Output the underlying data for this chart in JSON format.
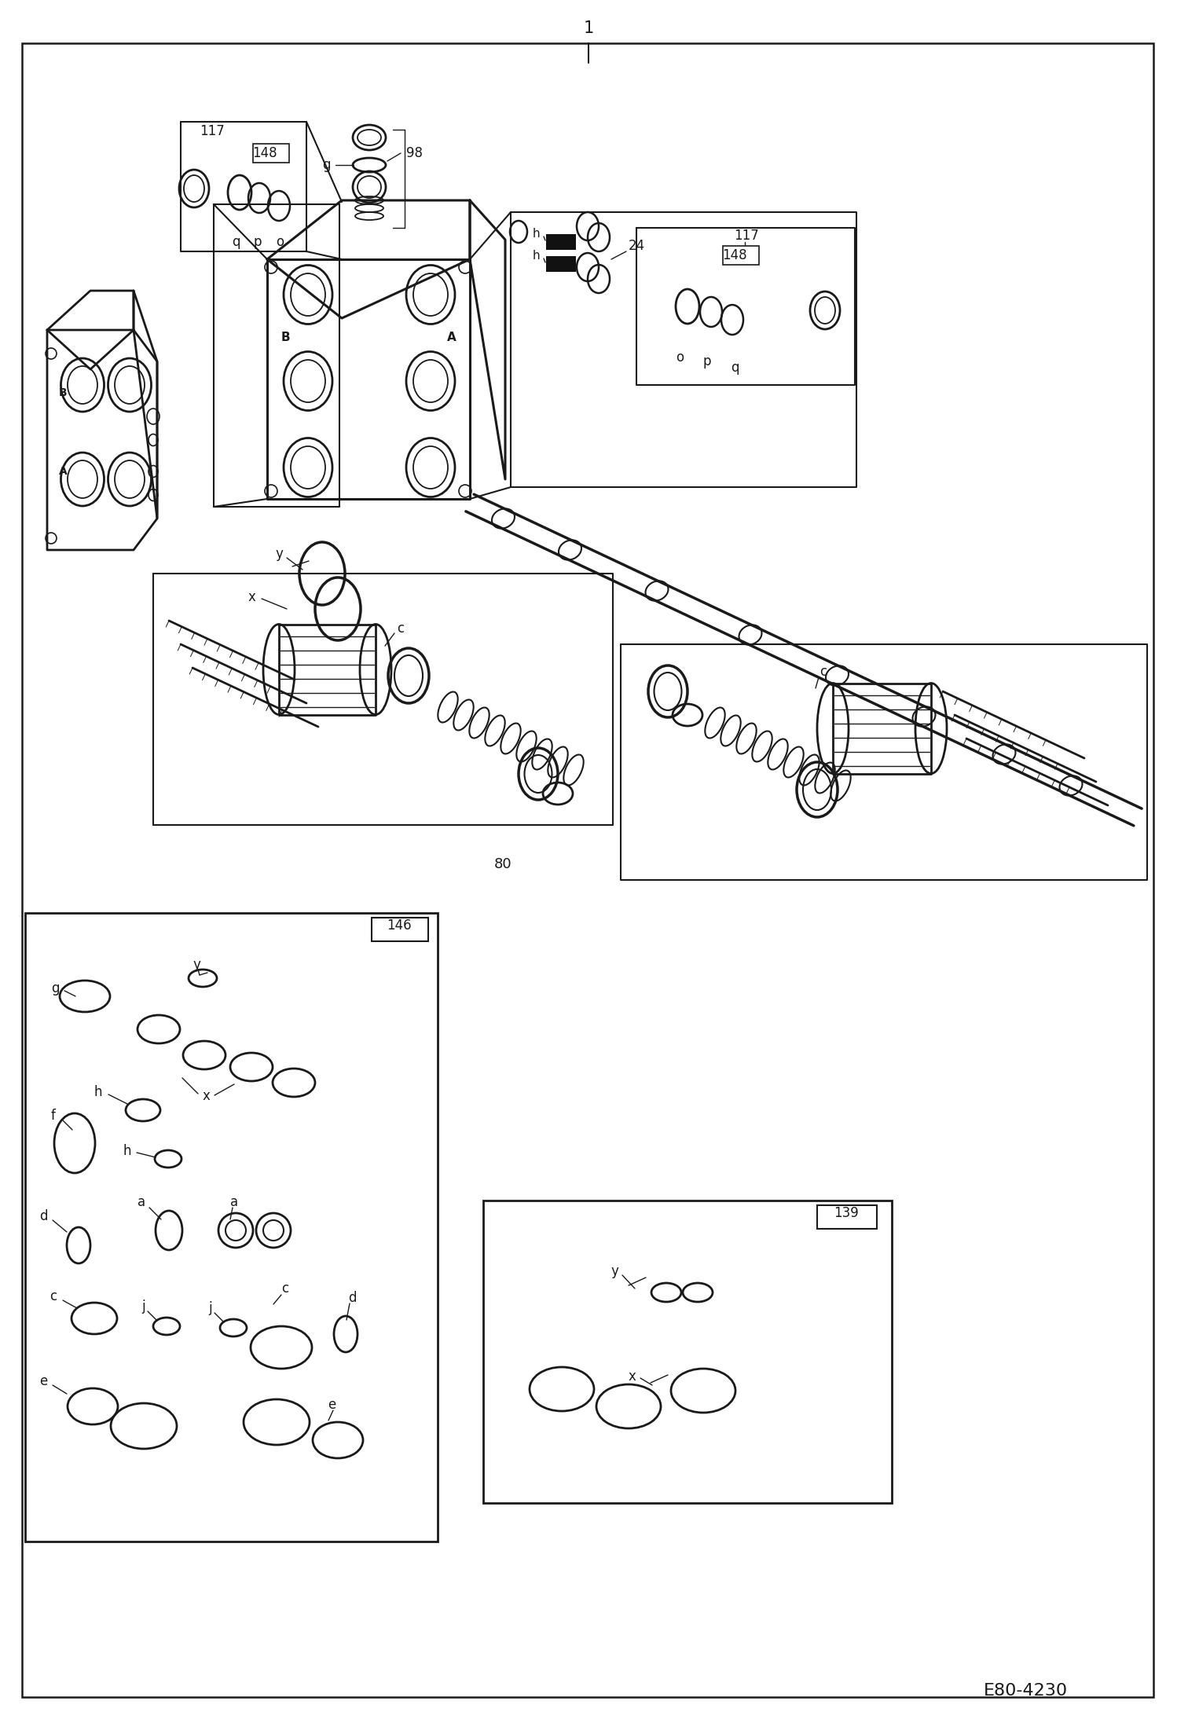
{
  "bg_color": "#ffffff",
  "lc": "#1a1a1a",
  "fig_width": 14.98,
  "fig_height": 21.93,
  "dpi": 100,
  "footer": "E80-4230",
  "border_num": "1",
  "labels": {
    "117_left": "117",
    "148_left": "148",
    "g": "g",
    "98": "98",
    "h1": "h",
    "h2": "h",
    "24": "24",
    "117_right": "117",
    "148_right": "148",
    "A_main": "A",
    "B_main": "B",
    "o_left": "o",
    "p_left": "p",
    "q_left": "q",
    "o_right": "o",
    "p_right": "p",
    "q_right": "q",
    "y_main": "y",
    "x_main": "x",
    "c_left": "c",
    "c_right": "c",
    "80": "80",
    "146_inset": "146",
    "139_inset": "139",
    "g_inset": "g",
    "y_inset146": "y",
    "x_inset146": "x",
    "h_inset1": "h",
    "f_inset": "f",
    "h_inset2": "h",
    "d_inset_l": "d",
    "a_inset_l": "a",
    "a_inset_r": "a",
    "c_inset_l": "c",
    "c_inset_r": "c",
    "j_inset1": "j",
    "j_inset2": "j",
    "d_inset_r": "d",
    "e_inset_l": "e",
    "e_inset_r": "e",
    "y_inset139": "y",
    "x_inset139": "x"
  }
}
